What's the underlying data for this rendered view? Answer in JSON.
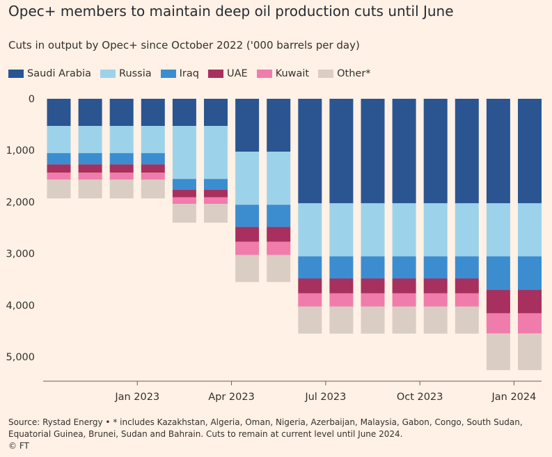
{
  "title": "Opec+ members to maintain deep oil production cuts until June",
  "subtitle": "Cuts in output by Opec+ since October 2022 ('000 barrels per day)",
  "source_line1": "Source: Rystad Energy • * includes Kazakhstan, Algeria, Oman, Nigeria, Azerbaijan, Malaysia, Gabon, Congo, South Sudan,",
  "source_line2": "Equatorial Guinea, Brunei, Sudan and Bahrain. Cuts to remain at current level until June 2024.",
  "copyright": "© FT",
  "legend": [
    {
      "name": "Saudi Arabia",
      "color": "#2A5591"
    },
    {
      "name": "Russia",
      "color": "#9DD3EA"
    },
    {
      "name": "Iraq",
      "color": "#3C8DD0"
    },
    {
      "name": "UAE",
      "color": "#A7305E"
    },
    {
      "name": "Kuwait",
      "color": "#F07CAB"
    },
    {
      "name": "Other*",
      "color": "#DACDC3"
    }
  ],
  "chart_data": {
    "type": "bar",
    "stacked": true,
    "orientation": "downward",
    "title": "Opec+ members to maintain deep oil production cuts until June",
    "ylabel": "'000 barrels per day",
    "ylim": [
      0,
      5500
    ],
    "yticks": [
      0,
      1000,
      2000,
      3000,
      4000,
      5000
    ],
    "ytick_labels": [
      "0",
      "1,000",
      "2,000",
      "3,000",
      "4,000",
      "5,000"
    ],
    "xtick_labels": [
      {
        "label": "Jan 2023",
        "index": 2
      },
      {
        "label": "Apr 2023",
        "index": 5
      },
      {
        "label": "Jul 2023",
        "index": 8
      },
      {
        "label": "Oct 2023",
        "index": 11
      },
      {
        "label": "Jan 2024",
        "index": 14
      }
    ],
    "categories": [
      "Nov 2022",
      "Dec 2022",
      "Jan 2023",
      "Feb 2023",
      "Mar 2023",
      "Apr 2023",
      "May 2023",
      "Jun 2023",
      "Jul 2023",
      "Aug 2023",
      "Sep 2023",
      "Oct 2023",
      "Nov 2023",
      "Dec 2023",
      "Jan 2024",
      "Feb 2024"
    ],
    "series": [
      {
        "name": "Saudi Arabia",
        "color": "#2A5591",
        "values": [
          526,
          526,
          526,
          526,
          526,
          526,
          1026,
          1026,
          2026,
          2026,
          2026,
          2026,
          2026,
          2026,
          2026,
          2026
        ]
      },
      {
        "name": "Russia",
        "color": "#9DD3EA",
        "values": [
          526,
          526,
          526,
          526,
          1026,
          1026,
          1026,
          1026,
          1026,
          1026,
          1026,
          1026,
          1026,
          1026,
          1026,
          1026
        ]
      },
      {
        "name": "Iraq",
        "color": "#3C8DD0",
        "values": [
          220,
          220,
          220,
          220,
          211,
          211,
          431,
          431,
          431,
          431,
          431,
          431,
          431,
          431,
          653,
          653
        ]
      },
      {
        "name": "UAE",
        "color": "#A7305E",
        "values": [
          160,
          160,
          160,
          160,
          144,
          144,
          288,
          288,
          288,
          288,
          288,
          288,
          288,
          288,
          451,
          451
        ]
      },
      {
        "name": "Kuwait",
        "color": "#F07CAB",
        "values": [
          135,
          135,
          135,
          135,
          128,
          128,
          256,
          256,
          256,
          256,
          256,
          256,
          256,
          256,
          391,
          391
        ]
      },
      {
        "name": "Other*",
        "color": "#DACDC3",
        "values": [
          363,
          363,
          363,
          363,
          365,
          365,
          523,
          523,
          523,
          523,
          523,
          523,
          523,
          523,
          710,
          710
        ]
      }
    ]
  }
}
